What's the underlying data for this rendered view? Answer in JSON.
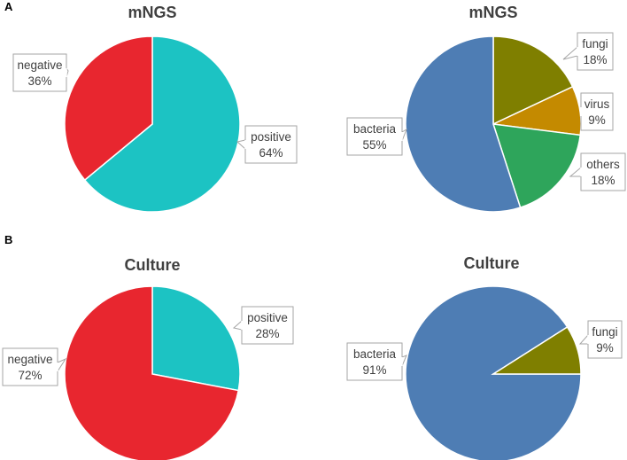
{
  "panels": [
    {
      "label": "A"
    },
    {
      "label": "B"
    }
  ],
  "chart_data": [
    {
      "type": "pie",
      "panel": "A",
      "title": "mNGS",
      "slices": [
        {
          "name": "positive",
          "value": 64,
          "value_label": "64%",
          "color": "#1cc3c3"
        },
        {
          "name": "negative",
          "value": 36,
          "value_label": "36%",
          "color": "#e8262f"
        }
      ]
    },
    {
      "type": "pie",
      "panel": "A",
      "title": "mNGS",
      "slices": [
        {
          "name": "fungi",
          "value": 18,
          "value_label": "18%",
          "color": "#7f7f00"
        },
        {
          "name": "virus",
          "value": 9,
          "value_label": "9%",
          "color": "#c48a00"
        },
        {
          "name": "others",
          "value": 18,
          "value_label": "18%",
          "color": "#2ea55b"
        },
        {
          "name": "bacteria",
          "value": 55,
          "value_label": "55%",
          "color": "#4e7db4"
        }
      ]
    },
    {
      "type": "pie",
      "panel": "B",
      "title": "Culture",
      "slices": [
        {
          "name": "positive",
          "value": 28,
          "value_label": "28%",
          "color": "#1cc3c3"
        },
        {
          "name": "negative",
          "value": 72,
          "value_label": "72%",
          "color": "#e8262f"
        }
      ]
    },
    {
      "type": "pie",
      "panel": "B",
      "title": "Culture",
      "slices": [
        {
          "name": "bacteria",
          "value": 91,
          "value_label": "91%",
          "color": "#4e7db4",
          "start_deg": 90
        },
        {
          "name": "fungi",
          "value": 9,
          "value_label": "9%",
          "color": "#7f7f00"
        }
      ]
    }
  ]
}
